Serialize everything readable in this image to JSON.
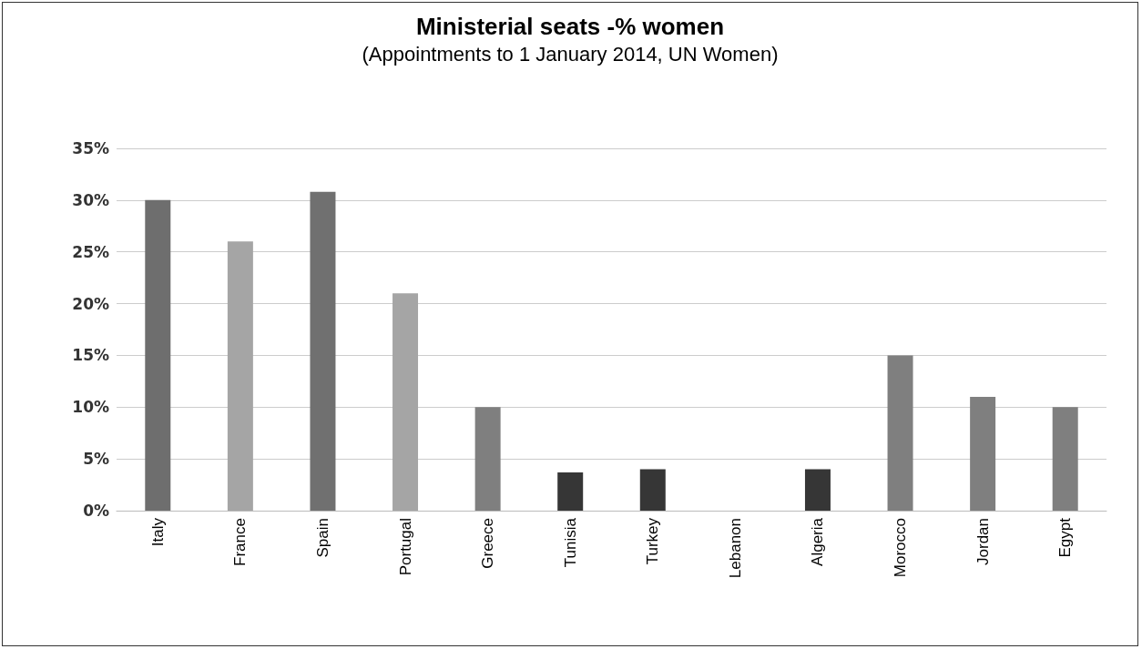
{
  "chart_data": {
    "type": "bar",
    "title": "Ministerial seats -% women",
    "subtitle": "(Appointments to 1 January 2014, UN Women)",
    "categories": [
      "Italy",
      "France",
      "Spain",
      "Portugal",
      "Greece",
      "Tunisia",
      "Turkey",
      "Lebanon",
      "Algeria",
      "Morocco",
      "Jordan",
      "Egypt"
    ],
    "values": [
      30,
      26,
      30.8,
      21,
      10,
      3.7,
      4,
      0,
      4,
      15,
      11,
      10
    ],
    "colors": [
      "#6e6e6e",
      "#a5a5a5",
      "#707070",
      "#a5a5a5",
      "#7f7f7f",
      "#363636",
      "#363636",
      "#363636",
      "#363636",
      "#7f7f7f",
      "#7f7f7f",
      "#7f7f7f"
    ],
    "ylim": [
      0,
      35
    ],
    "yticks": [
      {
        "value": 0,
        "label": "0%"
      },
      {
        "value": 5,
        "label": "5%"
      },
      {
        "value": 10,
        "label": "10%"
      },
      {
        "value": 15,
        "label": "15%"
      },
      {
        "value": 20,
        "label": "20%"
      },
      {
        "value": 25,
        "label": "25%"
      },
      {
        "value": 30,
        "label": "30%"
      },
      {
        "value": 35,
        "label": "35%"
      }
    ],
    "grid": "y"
  }
}
